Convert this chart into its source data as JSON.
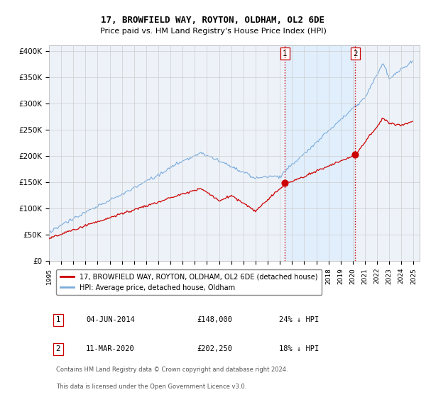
{
  "title": "17, BROWFIELD WAY, ROYTON, OLDHAM, OL2 6DE",
  "subtitle": "Price paid vs. HM Land Registry's House Price Index (HPI)",
  "legend_line1": "17, BROWFIELD WAY, ROYTON, OLDHAM, OL2 6DE (detached house)",
  "legend_line2": "HPI: Average price, detached house, Oldham",
  "transaction1": {
    "date": "04-JUN-2014",
    "price": 148000,
    "pct": "24% ↓ HPI",
    "label": "1"
  },
  "transaction2": {
    "date": "11-MAR-2020",
    "price": 202250,
    "pct": "18% ↓ HPI",
    "label": "2"
  },
  "footer1": "Contains HM Land Registry data © Crown copyright and database right 2024.",
  "footer2": "This data is licensed under the Open Government Licence v3.0.",
  "ylim": [
    0,
    410000
  ],
  "yticks": [
    0,
    50000,
    100000,
    150000,
    200000,
    250000,
    300000,
    350000,
    400000
  ],
  "ytick_labels": [
    "£0",
    "£50K",
    "£100K",
    "£150K",
    "£200K",
    "£250K",
    "£300K",
    "£350K",
    "£400K"
  ],
  "price_line_color": "#cc0000",
  "hpi_line_color": "#7aabdb",
  "vline_color": "#cc0000",
  "shade_color": "#ddeeff",
  "grid_color": "#cccccc",
  "background_color": "#ffffff",
  "plot_bg_color": "#edf2f9",
  "marker1_x": 2014.42,
  "marker2_x": 2020.19,
  "marker1_y": 148000,
  "marker2_y": 202250,
  "xtick_years": [
    1995,
    1996,
    1997,
    1998,
    1999,
    2000,
    2001,
    2002,
    2003,
    2004,
    2005,
    2006,
    2007,
    2008,
    2009,
    2010,
    2011,
    2012,
    2013,
    2014,
    2015,
    2016,
    2017,
    2018,
    2019,
    2020,
    2021,
    2022,
    2023,
    2024,
    2025
  ]
}
